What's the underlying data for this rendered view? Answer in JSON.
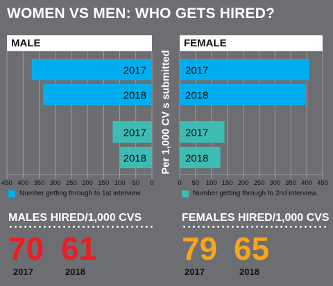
{
  "title": "WOMEN VS MEN: WHO GETS HIRED?",
  "vertical_label": "Per 1,000 CV s submitted",
  "colors": {
    "first_interview": "#00aeef",
    "second_interview": "#3ebcb4",
    "male_hired": "#ed1c24",
    "female_hired": "#f8a51c",
    "background": "#6d6e71"
  },
  "chart_data": [
    {
      "type": "bar",
      "panel": "MALE",
      "orientation": "horizontal-reversed",
      "xlim": [
        0,
        450
      ],
      "ticks": [
        450,
        400,
        350,
        300,
        250,
        200,
        150,
        100,
        50,
        0
      ],
      "series": [
        {
          "name": "Number getting through to 1st interview",
          "categories": [
            "2017",
            "2018"
          ],
          "values": [
            373,
            338
          ]
        },
        {
          "name": "Number getting through to 2nd interview",
          "categories": [
            "2017",
            "2018"
          ],
          "values": [
            122,
            101
          ]
        }
      ]
    },
    {
      "type": "bar",
      "panel": "FEMALE",
      "orientation": "horizontal",
      "xlim": [
        0,
        450
      ],
      "ticks": [
        0,
        50,
        100,
        150,
        200,
        250,
        300,
        350,
        400,
        450
      ],
      "series": [
        {
          "name": "Number getting through to 1st interview",
          "categories": [
            "2017",
            "2018"
          ],
          "values": [
            408,
            397
          ]
        },
        {
          "name": "Number getting through to 2nd interview",
          "categories": [
            "2017",
            "2018"
          ],
          "values": [
            141,
            128
          ]
        }
      ]
    }
  ],
  "hired": {
    "male": {
      "title": "MALES HIRED/1,000 CVS",
      "values": [
        "70",
        "61"
      ],
      "years": [
        "2017",
        "2018"
      ]
    },
    "female": {
      "title": "FEMALES HIRED/1,000 CVS",
      "values": [
        "79",
        "65"
      ],
      "years": [
        "2017",
        "2018"
      ]
    }
  }
}
